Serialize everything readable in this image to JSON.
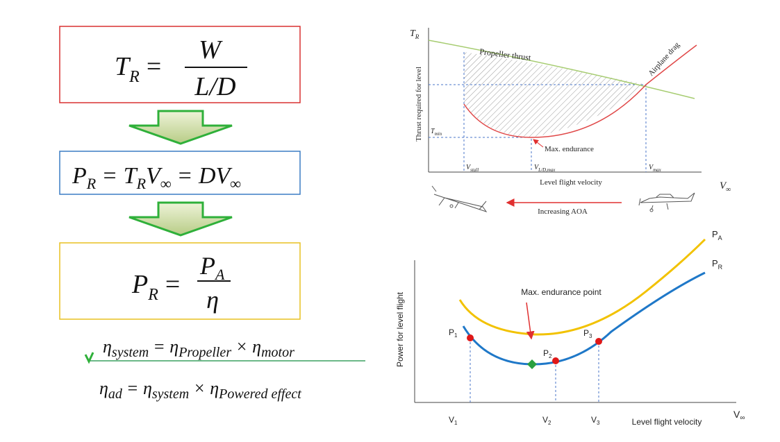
{
  "left_panel": {
    "equations": [
      [
        "T",
        "R",
        "=",
        "W",
        "L/D"
      ],
      [
        "P",
        "R",
        "= T",
        "R",
        "V",
        "∞",
        "= DV",
        "∞"
      ],
      [
        "P",
        "R",
        "=",
        "P",
        "A",
        "η"
      ],
      [
        "η",
        "system",
        "= η",
        "Propeller",
        "× η",
        "motor"
      ],
      [
        "η",
        "ad",
        "= η",
        "system",
        "× η",
        "Powered effect"
      ]
    ]
  },
  "thrust_chart": {
    "y_axis_symbol": [
      "T",
      "R"
    ],
    "y_axis_label": "Thrust required for level",
    "propeller_label": "Propeller thrust",
    "drag_label": "Airplane drag",
    "tmin_label": [
      "T",
      "min"
    ],
    "annotation": "Max. endurance",
    "x_markers": [
      [
        "V",
        "stall"
      ],
      [
        "V",
        "L/D,max"
      ],
      [
        "V",
        "max"
      ]
    ],
    "x_axis_label": "Level flight velocity",
    "x_axis_symbol": [
      "V",
      "∞"
    ],
    "arrow_label": "Increasing AOA"
  },
  "power_chart": {
    "curve_labels": [
      [
        "P",
        "A"
      ],
      [
        "P",
        "R"
      ]
    ],
    "y_axis_label": "Power for level flight",
    "annotation": "Max. endurance point",
    "point_labels": [
      [
        "P",
        "1"
      ],
      [
        "P",
        "2"
      ],
      [
        "P",
        "3"
      ]
    ],
    "x_markers": [
      [
        "V",
        "1"
      ],
      [
        "V",
        "2"
      ],
      [
        "V",
        "3"
      ]
    ],
    "x_axis_label": "Level flight velocity",
    "x_axis_symbol": [
      "V",
      "∞"
    ]
  }
}
